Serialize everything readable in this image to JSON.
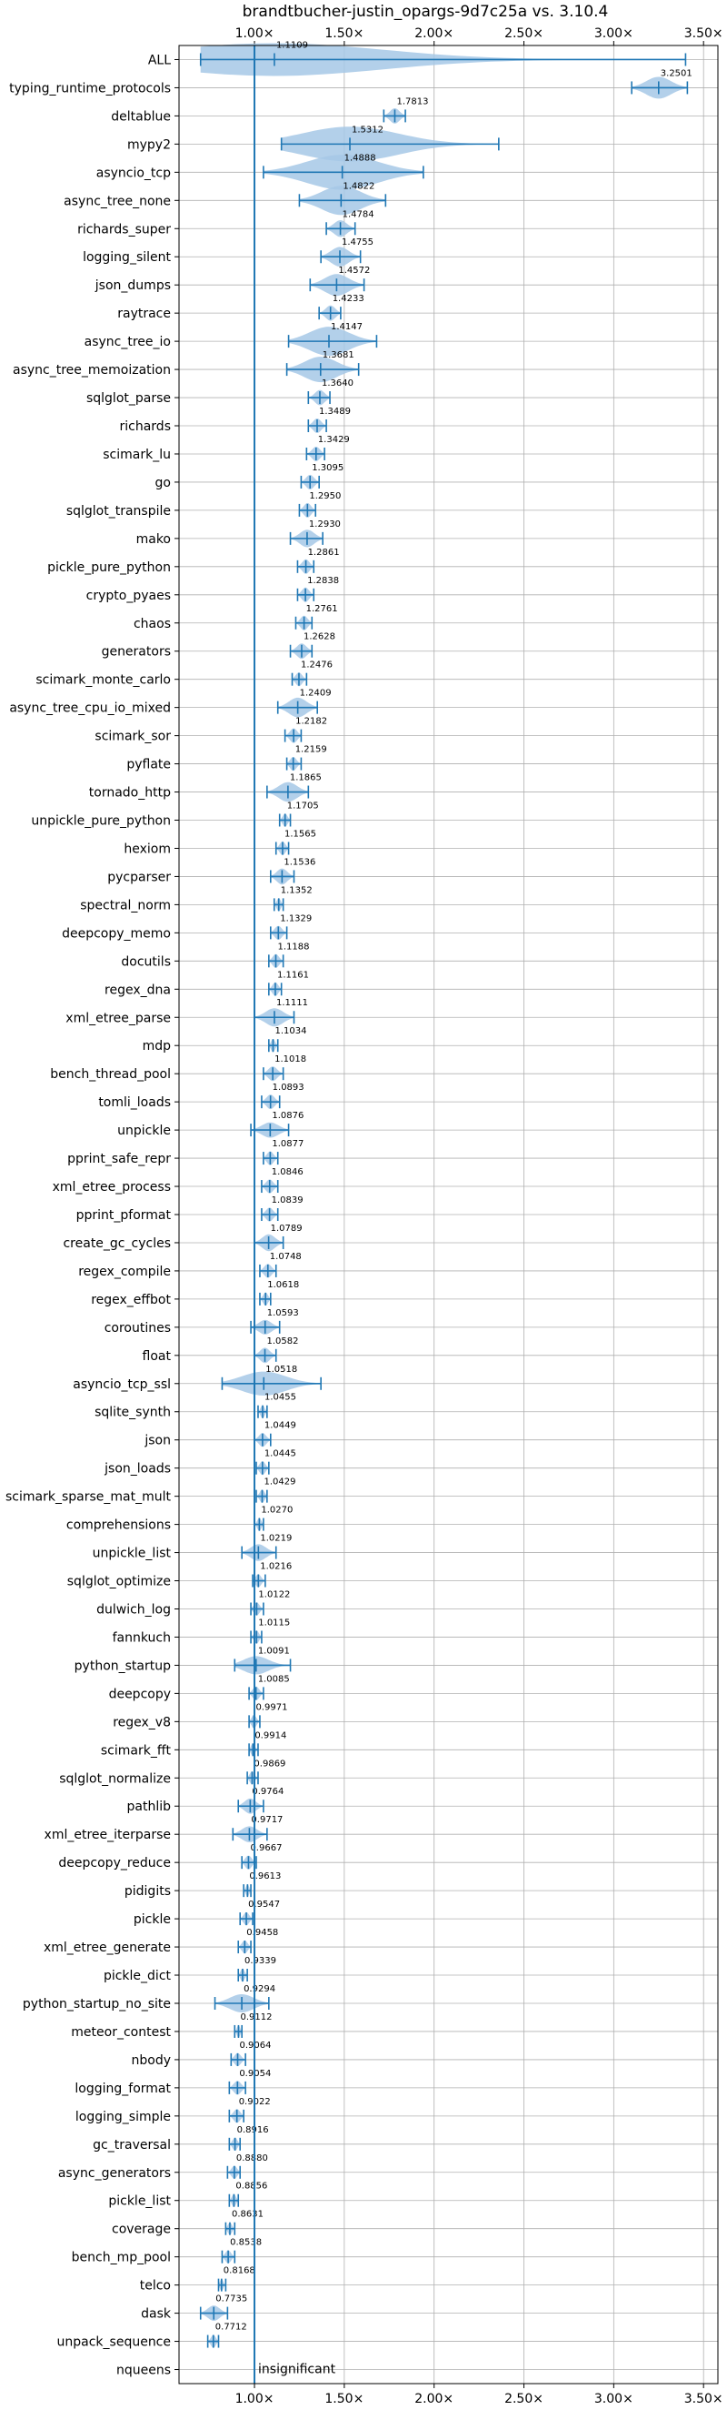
{
  "chart_data": {
    "type": "violin",
    "title": "brandtbucher-justin_opargs-9d7c25a vs. 3.10.4",
    "xlabel": "",
    "ylabel": "",
    "xlim": [
      0.58,
      3.58
    ],
    "x_ticks": [
      1.0,
      1.5,
      2.0,
      2.5,
      3.0,
      3.5
    ],
    "x_tick_labels": [
      "1.00×",
      "1.50×",
      "2.00×",
      "2.50×",
      "3.00×",
      "3.50×"
    ],
    "grid": true,
    "reference_line": 1.0,
    "accent_color": "#1f77b4",
    "violin_color": "#a6c8e6",
    "note": "insignificant",
    "benchmarks": [
      {
        "name": "ALL",
        "value": 1.1109,
        "min": 0.7,
        "max": 3.4,
        "spread": 0.3
      },
      {
        "name": "typing_runtime_protocols",
        "value": 3.2501,
        "min": 3.1,
        "max": 3.41,
        "spread": 0.15
      },
      {
        "name": "deltablue",
        "value": 1.7813,
        "min": 1.72,
        "max": 1.84,
        "spread": 0.06
      },
      {
        "name": "mypy2",
        "value": 1.5312,
        "min": 1.15,
        "max": 2.36,
        "spread": 0.5
      },
      {
        "name": "asyncio_tcp",
        "value": 1.4888,
        "min": 1.05,
        "max": 1.94,
        "spread": 0.4
      },
      {
        "name": "async_tree_none",
        "value": 1.4822,
        "min": 1.25,
        "max": 1.73,
        "spread": 0.25
      },
      {
        "name": "richards_super",
        "value": 1.4784,
        "min": 1.4,
        "max": 1.56,
        "spread": 0.08
      },
      {
        "name": "logging_silent",
        "value": 1.4755,
        "min": 1.37,
        "max": 1.59,
        "spread": 0.12
      },
      {
        "name": "json_dumps",
        "value": 1.4572,
        "min": 1.31,
        "max": 1.61,
        "spread": 0.15
      },
      {
        "name": "raytrace",
        "value": 1.4233,
        "min": 1.36,
        "max": 1.48,
        "spread": 0.06
      },
      {
        "name": "async_tree_io",
        "value": 1.4147,
        "min": 1.19,
        "max": 1.68,
        "spread": 0.25
      },
      {
        "name": "async_tree_memoization",
        "value": 1.3681,
        "min": 1.18,
        "max": 1.58,
        "spread": 0.2
      },
      {
        "name": "sqlglot_parse",
        "value": 1.364,
        "min": 1.3,
        "max": 1.42,
        "spread": 0.06
      },
      {
        "name": "richards",
        "value": 1.3489,
        "min": 1.3,
        "max": 1.4,
        "spread": 0.05
      },
      {
        "name": "scimark_lu",
        "value": 1.3429,
        "min": 1.29,
        "max": 1.39,
        "spread": 0.05
      },
      {
        "name": "go",
        "value": 1.3095,
        "min": 1.26,
        "max": 1.36,
        "spread": 0.05
      },
      {
        "name": "sqlglot_transpile",
        "value": 1.295,
        "min": 1.25,
        "max": 1.34,
        "spread": 0.05
      },
      {
        "name": "mako",
        "value": 1.293,
        "min": 1.2,
        "max": 1.38,
        "spread": 0.09
      },
      {
        "name": "pickle_pure_python",
        "value": 1.2861,
        "min": 1.24,
        "max": 1.33,
        "spread": 0.05
      },
      {
        "name": "crypto_pyaes",
        "value": 1.2838,
        "min": 1.24,
        "max": 1.33,
        "spread": 0.05
      },
      {
        "name": "chaos",
        "value": 1.2761,
        "min": 1.23,
        "max": 1.32,
        "spread": 0.05
      },
      {
        "name": "generators",
        "value": 1.2628,
        "min": 1.2,
        "max": 1.32,
        "spread": 0.06
      },
      {
        "name": "scimark_monte_carlo",
        "value": 1.2476,
        "min": 1.21,
        "max": 1.29,
        "spread": 0.04
      },
      {
        "name": "async_tree_cpu_io_mixed",
        "value": 1.2409,
        "min": 1.13,
        "max": 1.35,
        "spread": 0.12
      },
      {
        "name": "scimark_sor",
        "value": 1.2182,
        "min": 1.17,
        "max": 1.26,
        "spread": 0.05
      },
      {
        "name": "pyflate",
        "value": 1.2159,
        "min": 1.18,
        "max": 1.26,
        "spread": 0.04
      },
      {
        "name": "tornado_http",
        "value": 1.1865,
        "min": 1.07,
        "max": 1.3,
        "spread": 0.12
      },
      {
        "name": "unpickle_pure_python",
        "value": 1.1705,
        "min": 1.14,
        "max": 1.2,
        "spread": 0.03
      },
      {
        "name": "hexiom",
        "value": 1.1565,
        "min": 1.12,
        "max": 1.19,
        "spread": 0.04
      },
      {
        "name": "pycparser",
        "value": 1.1536,
        "min": 1.09,
        "max": 1.22,
        "spread": 0.07
      },
      {
        "name": "spectral_norm",
        "value": 1.1352,
        "min": 1.11,
        "max": 1.16,
        "spread": 0.03
      },
      {
        "name": "deepcopy_memo",
        "value": 1.1329,
        "min": 1.09,
        "max": 1.18,
        "spread": 0.04
      },
      {
        "name": "docutils",
        "value": 1.1188,
        "min": 1.08,
        "max": 1.16,
        "spread": 0.04
      },
      {
        "name": "regex_dna",
        "value": 1.1161,
        "min": 1.08,
        "max": 1.15,
        "spread": 0.04
      },
      {
        "name": "xml_etree_parse",
        "value": 1.1111,
        "min": 1.0,
        "max": 1.22,
        "spread": 0.1
      },
      {
        "name": "mdp",
        "value": 1.1034,
        "min": 1.08,
        "max": 1.13,
        "spread": 0.03
      },
      {
        "name": "bench_thread_pool",
        "value": 1.1018,
        "min": 1.05,
        "max": 1.16,
        "spread": 0.05
      },
      {
        "name": "tomli_loads",
        "value": 1.0893,
        "min": 1.04,
        "max": 1.14,
        "spread": 0.05
      },
      {
        "name": "unpickle",
        "value": 1.0876,
        "min": 0.98,
        "max": 1.19,
        "spread": 0.06
      },
      {
        "name": "pprint_safe_repr",
        "value": 1.0877,
        "min": 1.05,
        "max": 1.13,
        "spread": 0.04
      },
      {
        "name": "xml_etree_process",
        "value": 1.0846,
        "min": 1.04,
        "max": 1.13,
        "spread": 0.04
      },
      {
        "name": "pprint_pformat",
        "value": 1.0839,
        "min": 1.04,
        "max": 1.13,
        "spread": 0.04
      },
      {
        "name": "create_gc_cycles",
        "value": 1.0789,
        "min": 1.0,
        "max": 1.16,
        "spread": 0.08
      },
      {
        "name": "regex_compile",
        "value": 1.0748,
        "min": 1.03,
        "max": 1.12,
        "spread": 0.04
      },
      {
        "name": "regex_effbot",
        "value": 1.0618,
        "min": 1.03,
        "max": 1.09,
        "spread": 0.03
      },
      {
        "name": "coroutines",
        "value": 1.0593,
        "min": 0.98,
        "max": 1.14,
        "spread": 0.05
      },
      {
        "name": "float",
        "value": 1.0582,
        "min": 1.0,
        "max": 1.12,
        "spread": 0.06
      },
      {
        "name": "asyncio_tcp_ssl",
        "value": 1.0518,
        "min": 0.82,
        "max": 1.37,
        "spread": 0.18
      },
      {
        "name": "sqlite_synth",
        "value": 1.0455,
        "min": 1.02,
        "max": 1.07,
        "spread": 0.03
      },
      {
        "name": "json",
        "value": 1.0449,
        "min": 1.0,
        "max": 1.09,
        "spread": 0.04
      },
      {
        "name": "json_loads",
        "value": 1.0445,
        "min": 1.01,
        "max": 1.08,
        "spread": 0.04
      },
      {
        "name": "scimark_sparse_mat_mult",
        "value": 1.0429,
        "min": 1.01,
        "max": 1.07,
        "spread": 0.03
      },
      {
        "name": "comprehensions",
        "value": 1.027,
        "min": 1.0,
        "max": 1.05,
        "spread": 0.03
      },
      {
        "name": "unpickle_list",
        "value": 1.0219,
        "min": 0.93,
        "max": 1.12,
        "spread": 0.08
      },
      {
        "name": "sqlglot_optimize",
        "value": 1.0216,
        "min": 0.99,
        "max": 1.06,
        "spread": 0.03
      },
      {
        "name": "dulwich_log",
        "value": 1.0122,
        "min": 0.98,
        "max": 1.05,
        "spread": 0.03
      },
      {
        "name": "fannkuch",
        "value": 1.0115,
        "min": 0.98,
        "max": 1.04,
        "spread": 0.03
      },
      {
        "name": "python_startup",
        "value": 1.0091,
        "min": 0.89,
        "max": 1.2,
        "spread": 0.1
      },
      {
        "name": "deepcopy",
        "value": 1.0085,
        "min": 0.97,
        "max": 1.05,
        "spread": 0.04
      },
      {
        "name": "regex_v8",
        "value": 0.9971,
        "min": 0.97,
        "max": 1.03,
        "spread": 0.03
      },
      {
        "name": "scimark_fft",
        "value": 0.9914,
        "min": 0.97,
        "max": 1.02,
        "spread": 0.02
      },
      {
        "name": "sqlglot_normalize",
        "value": 0.9869,
        "min": 0.96,
        "max": 1.02,
        "spread": 0.03
      },
      {
        "name": "pathlib",
        "value": 0.9764,
        "min": 0.91,
        "max": 1.05,
        "spread": 0.06
      },
      {
        "name": "xml_etree_iterparse",
        "value": 0.9717,
        "min": 0.88,
        "max": 1.07,
        "spread": 0.07
      },
      {
        "name": "deepcopy_reduce",
        "value": 0.9667,
        "min": 0.93,
        "max": 1.01,
        "spread": 0.04
      },
      {
        "name": "pidigits",
        "value": 0.9613,
        "min": 0.94,
        "max": 0.98,
        "spread": 0.02
      },
      {
        "name": "pickle",
        "value": 0.9547,
        "min": 0.92,
        "max": 0.99,
        "spread": 0.03
      },
      {
        "name": "xml_etree_generate",
        "value": 0.9458,
        "min": 0.91,
        "max": 0.98,
        "spread": 0.03
      },
      {
        "name": "pickle_dict",
        "value": 0.9339,
        "min": 0.91,
        "max": 0.96,
        "spread": 0.03
      },
      {
        "name": "python_startup_no_site",
        "value": 0.9294,
        "min": 0.78,
        "max": 1.08,
        "spread": 0.1
      },
      {
        "name": "meteor_contest",
        "value": 0.9112,
        "min": 0.89,
        "max": 0.93,
        "spread": 0.02
      },
      {
        "name": "nbody",
        "value": 0.9064,
        "min": 0.87,
        "max": 0.95,
        "spread": 0.03
      },
      {
        "name": "logging_format",
        "value": 0.9054,
        "min": 0.86,
        "max": 0.95,
        "spread": 0.04
      },
      {
        "name": "logging_simple",
        "value": 0.9022,
        "min": 0.86,
        "max": 0.94,
        "spread": 0.04
      },
      {
        "name": "gc_traversal",
        "value": 0.8916,
        "min": 0.86,
        "max": 0.92,
        "spread": 0.03
      },
      {
        "name": "async_generators",
        "value": 0.888,
        "min": 0.85,
        "max": 0.92,
        "spread": 0.03
      },
      {
        "name": "pickle_list",
        "value": 0.8856,
        "min": 0.86,
        "max": 0.91,
        "spread": 0.03
      },
      {
        "name": "coverage",
        "value": 0.8631,
        "min": 0.84,
        "max": 0.89,
        "spread": 0.02
      },
      {
        "name": "bench_mp_pool",
        "value": 0.8538,
        "min": 0.82,
        "max": 0.89,
        "spread": 0.03
      },
      {
        "name": "telco",
        "value": 0.8168,
        "min": 0.8,
        "max": 0.84,
        "spread": 0.02
      },
      {
        "name": "dask",
        "value": 0.7735,
        "min": 0.7,
        "max": 0.85,
        "spread": 0.06
      },
      {
        "name": "unpack_sequence",
        "value": 0.7712,
        "min": 0.74,
        "max": 0.8,
        "spread": 0.03
      },
      {
        "name": "nqueens",
        "value": null,
        "min": null,
        "max": null,
        "spread": 0,
        "label": "insignificant"
      }
    ]
  }
}
